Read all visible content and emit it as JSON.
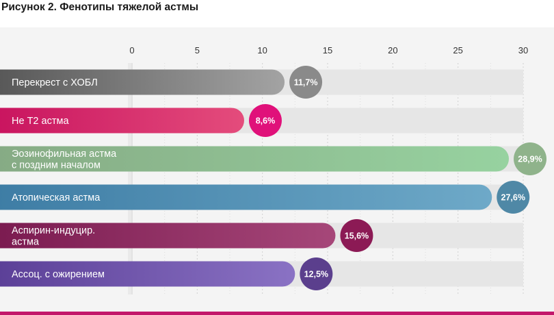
{
  "figure_title": "Рисунок 2. Фенотипы тяжелой астмы",
  "chart_data": {
    "type": "bar",
    "orientation": "horizontal",
    "title": "Рисунок 2. Фенотипы тяжелой астмы",
    "xlim": [
      0,
      30
    ],
    "ticks": [
      0,
      5,
      10,
      15,
      20,
      25,
      30
    ],
    "tick_labels": [
      "0",
      "5",
      "10",
      "15",
      "20",
      "25",
      "30"
    ],
    "bars": [
      {
        "label": [
          "Перекрест с ХОБЛ"
        ],
        "value": 11.7,
        "value_label": "11,7%",
        "color": "#a3a3a3",
        "color_dark": "#555555",
        "bubble": "#8a8a8a"
      },
      {
        "label": [
          "Не Т2 астма"
        ],
        "value": 8.6,
        "value_label": "8,6%",
        "color": "#e44c7c",
        "color_dark": "#c8125e",
        "bubble": "#e0117a"
      },
      {
        "label": [
          "Эозинофильная астма",
          "с поздним началом"
        ],
        "value": 28.9,
        "value_label": "28,9%",
        "color": "#97d2a0",
        "color_dark": "#86aa84",
        "bubble": "#8fb38b"
      },
      {
        "label": [
          "Атопическая астма"
        ],
        "value": 27.6,
        "value_label": "27,6%",
        "color": "#6ea9c8",
        "color_dark": "#3d7ca4",
        "bubble": "#4f88a6"
      },
      {
        "label": [
          "Аспирин-индуцир.",
          "астма"
        ],
        "value": 15.6,
        "value_label": "15,6%",
        "color": "#a64779",
        "color_dark": "#7a1a4f",
        "bubble": "#8c1a55"
      },
      {
        "label": [
          "Ассоц. с ожирением"
        ],
        "value": 12.5,
        "value_label": "12,5%",
        "color": "#8a72c4",
        "color_dark": "#5a3e96",
        "bubble": "#5b3f8d"
      }
    ]
  }
}
